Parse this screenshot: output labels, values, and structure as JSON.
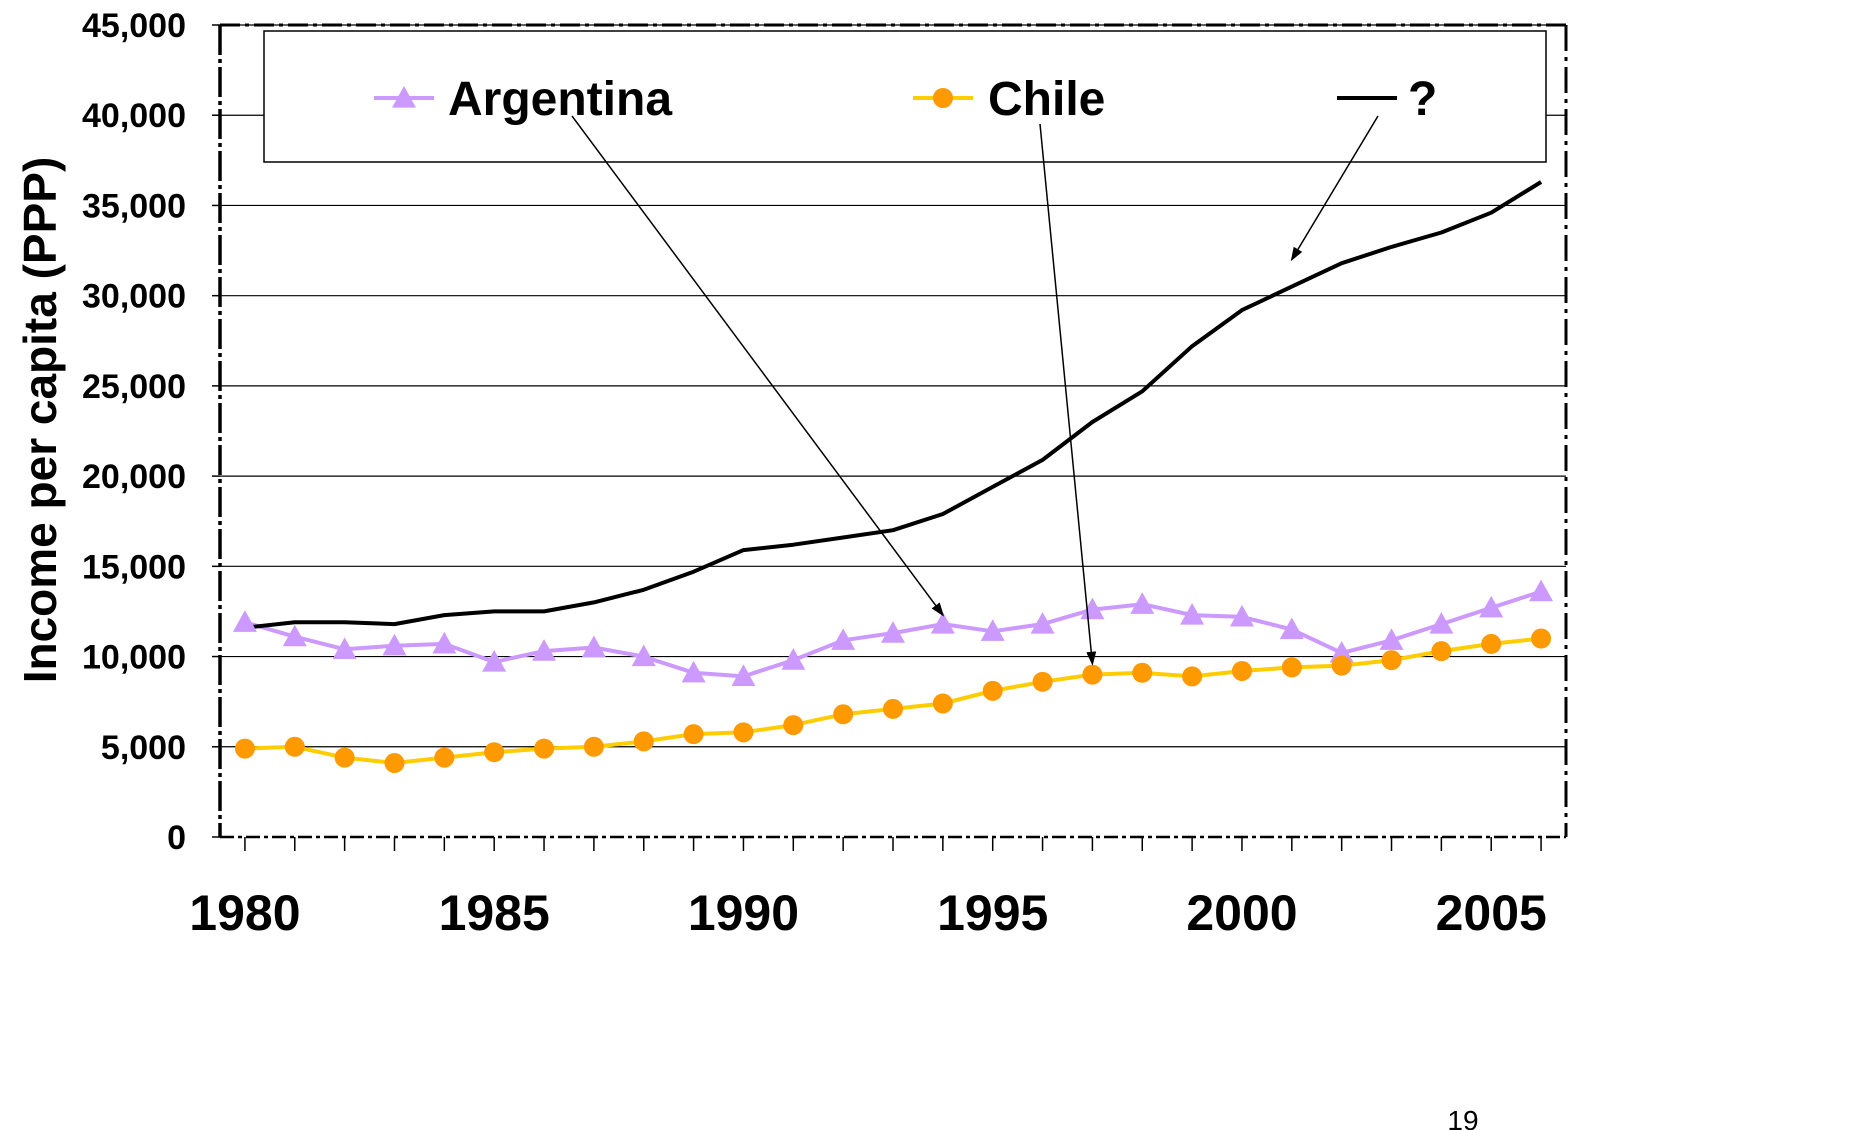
{
  "chart_data": {
    "type": "line",
    "title": "",
    "xlabel": "",
    "ylabel": "Income per capita (PPP)",
    "x": [
      1980,
      1981,
      1982,
      1983,
      1984,
      1985,
      1986,
      1987,
      1988,
      1989,
      1990,
      1991,
      1992,
      1993,
      1994,
      1995,
      1996,
      1997,
      1998,
      1999,
      2000,
      2001,
      2002,
      2003,
      2004,
      2005,
      2006
    ],
    "xlim": [
      1979.5,
      2006.5
    ],
    "x_tick_labels": [
      "1980",
      "1985",
      "1990",
      "1995",
      "2000",
      "2005"
    ],
    "ylim": [
      0,
      45000
    ],
    "y_tick_labels": [
      "0",
      "5,000",
      "10,000",
      "15,000",
      "20,000",
      "25,000",
      "30,000",
      "35,000",
      "40,000",
      "45,000"
    ],
    "grid": "horizontal",
    "legend_position": "top",
    "series": [
      {
        "name": "Argentina",
        "color": "#cc99ff",
        "marker": "triangle",
        "values": [
          11900,
          11100,
          10400,
          10600,
          10700,
          9700,
          10300,
          10500,
          10000,
          9100,
          8900,
          9800,
          10900,
          11300,
          11800,
          11400,
          11800,
          12600,
          12900,
          12300,
          12200,
          11500,
          10200,
          10900,
          11800,
          12700,
          13600
        ]
      },
      {
        "name": "Chile",
        "color": "#ff9900",
        "line_color": "#ffcc00",
        "marker": "circle",
        "values": [
          4900,
          5000,
          4400,
          4100,
          4400,
          4700,
          4900,
          5000,
          5300,
          5700,
          5800,
          6200,
          6800,
          7100,
          7400,
          8100,
          8600,
          9000,
          9100,
          8900,
          9200,
          9400,
          9500,
          9800,
          10300,
          10700,
          11000
        ]
      },
      {
        "name": "?",
        "color": "#000000",
        "marker": "none",
        "values": [
          11600,
          11900,
          11900,
          11800,
          12300,
          12500,
          12500,
          13000,
          13700,
          14700,
          15900,
          16200,
          16600,
          17000,
          17900,
          19400,
          20900,
          23000,
          24700,
          27200,
          29200,
          30500,
          31800,
          32700,
          33500,
          34600,
          36300
        ]
      }
    ],
    "annotations": [
      {
        "type": "arrow",
        "from_legend": "Argentina",
        "to": [
          1994,
          12300
        ]
      },
      {
        "type": "arrow",
        "from_legend": "Chile",
        "to": [
          1997,
          9600
        ]
      },
      {
        "type": "arrow",
        "from_legend": "?",
        "to": [
          2001,
          32000
        ]
      }
    ]
  },
  "page_number": "19"
}
